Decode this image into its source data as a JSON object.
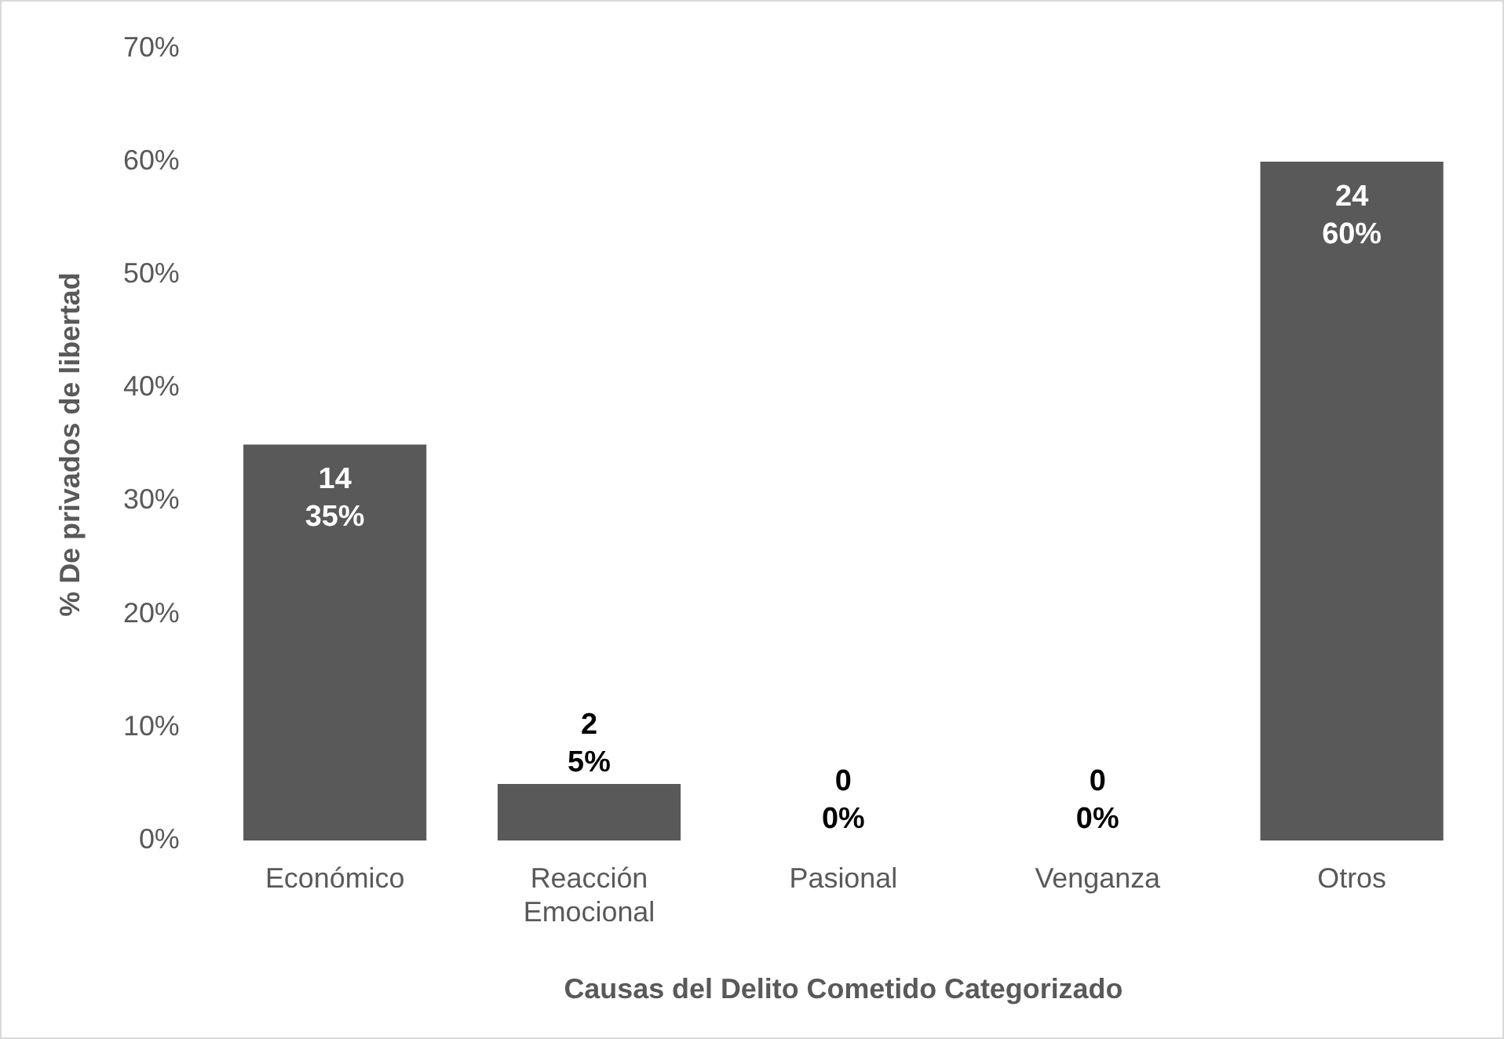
{
  "chart_data": {
    "type": "bar",
    "xlabel": "Causas del Delito Cometido Categorizado",
    "ylabel": "% De privados de libertad",
    "categories": [
      "Económico",
      "Reacción Emocional",
      "Pasional",
      "Venganza",
      "Otros"
    ],
    "values": [
      35,
      5,
      0,
      0,
      60
    ],
    "color": "#595959",
    "value_labels": [
      "14\n35%",
      "2\n5%",
      "0\n0%",
      "0\n0%",
      "24\n60%"
    ],
    "ylim": [
      0,
      70
    ],
    "yticks": [
      {
        "value": 0,
        "label": "0%"
      },
      {
        "value": 10,
        "label": "10%"
      },
      {
        "value": 20,
        "label": "20%"
      },
      {
        "value": 30,
        "label": "30%"
      },
      {
        "value": 40,
        "label": "40%"
      },
      {
        "value": 50,
        "label": "50%"
      },
      {
        "value": 60,
        "label": "60%"
      },
      {
        "value": 70,
        "label": "70%"
      }
    ],
    "grid": false,
    "legend": false
  }
}
